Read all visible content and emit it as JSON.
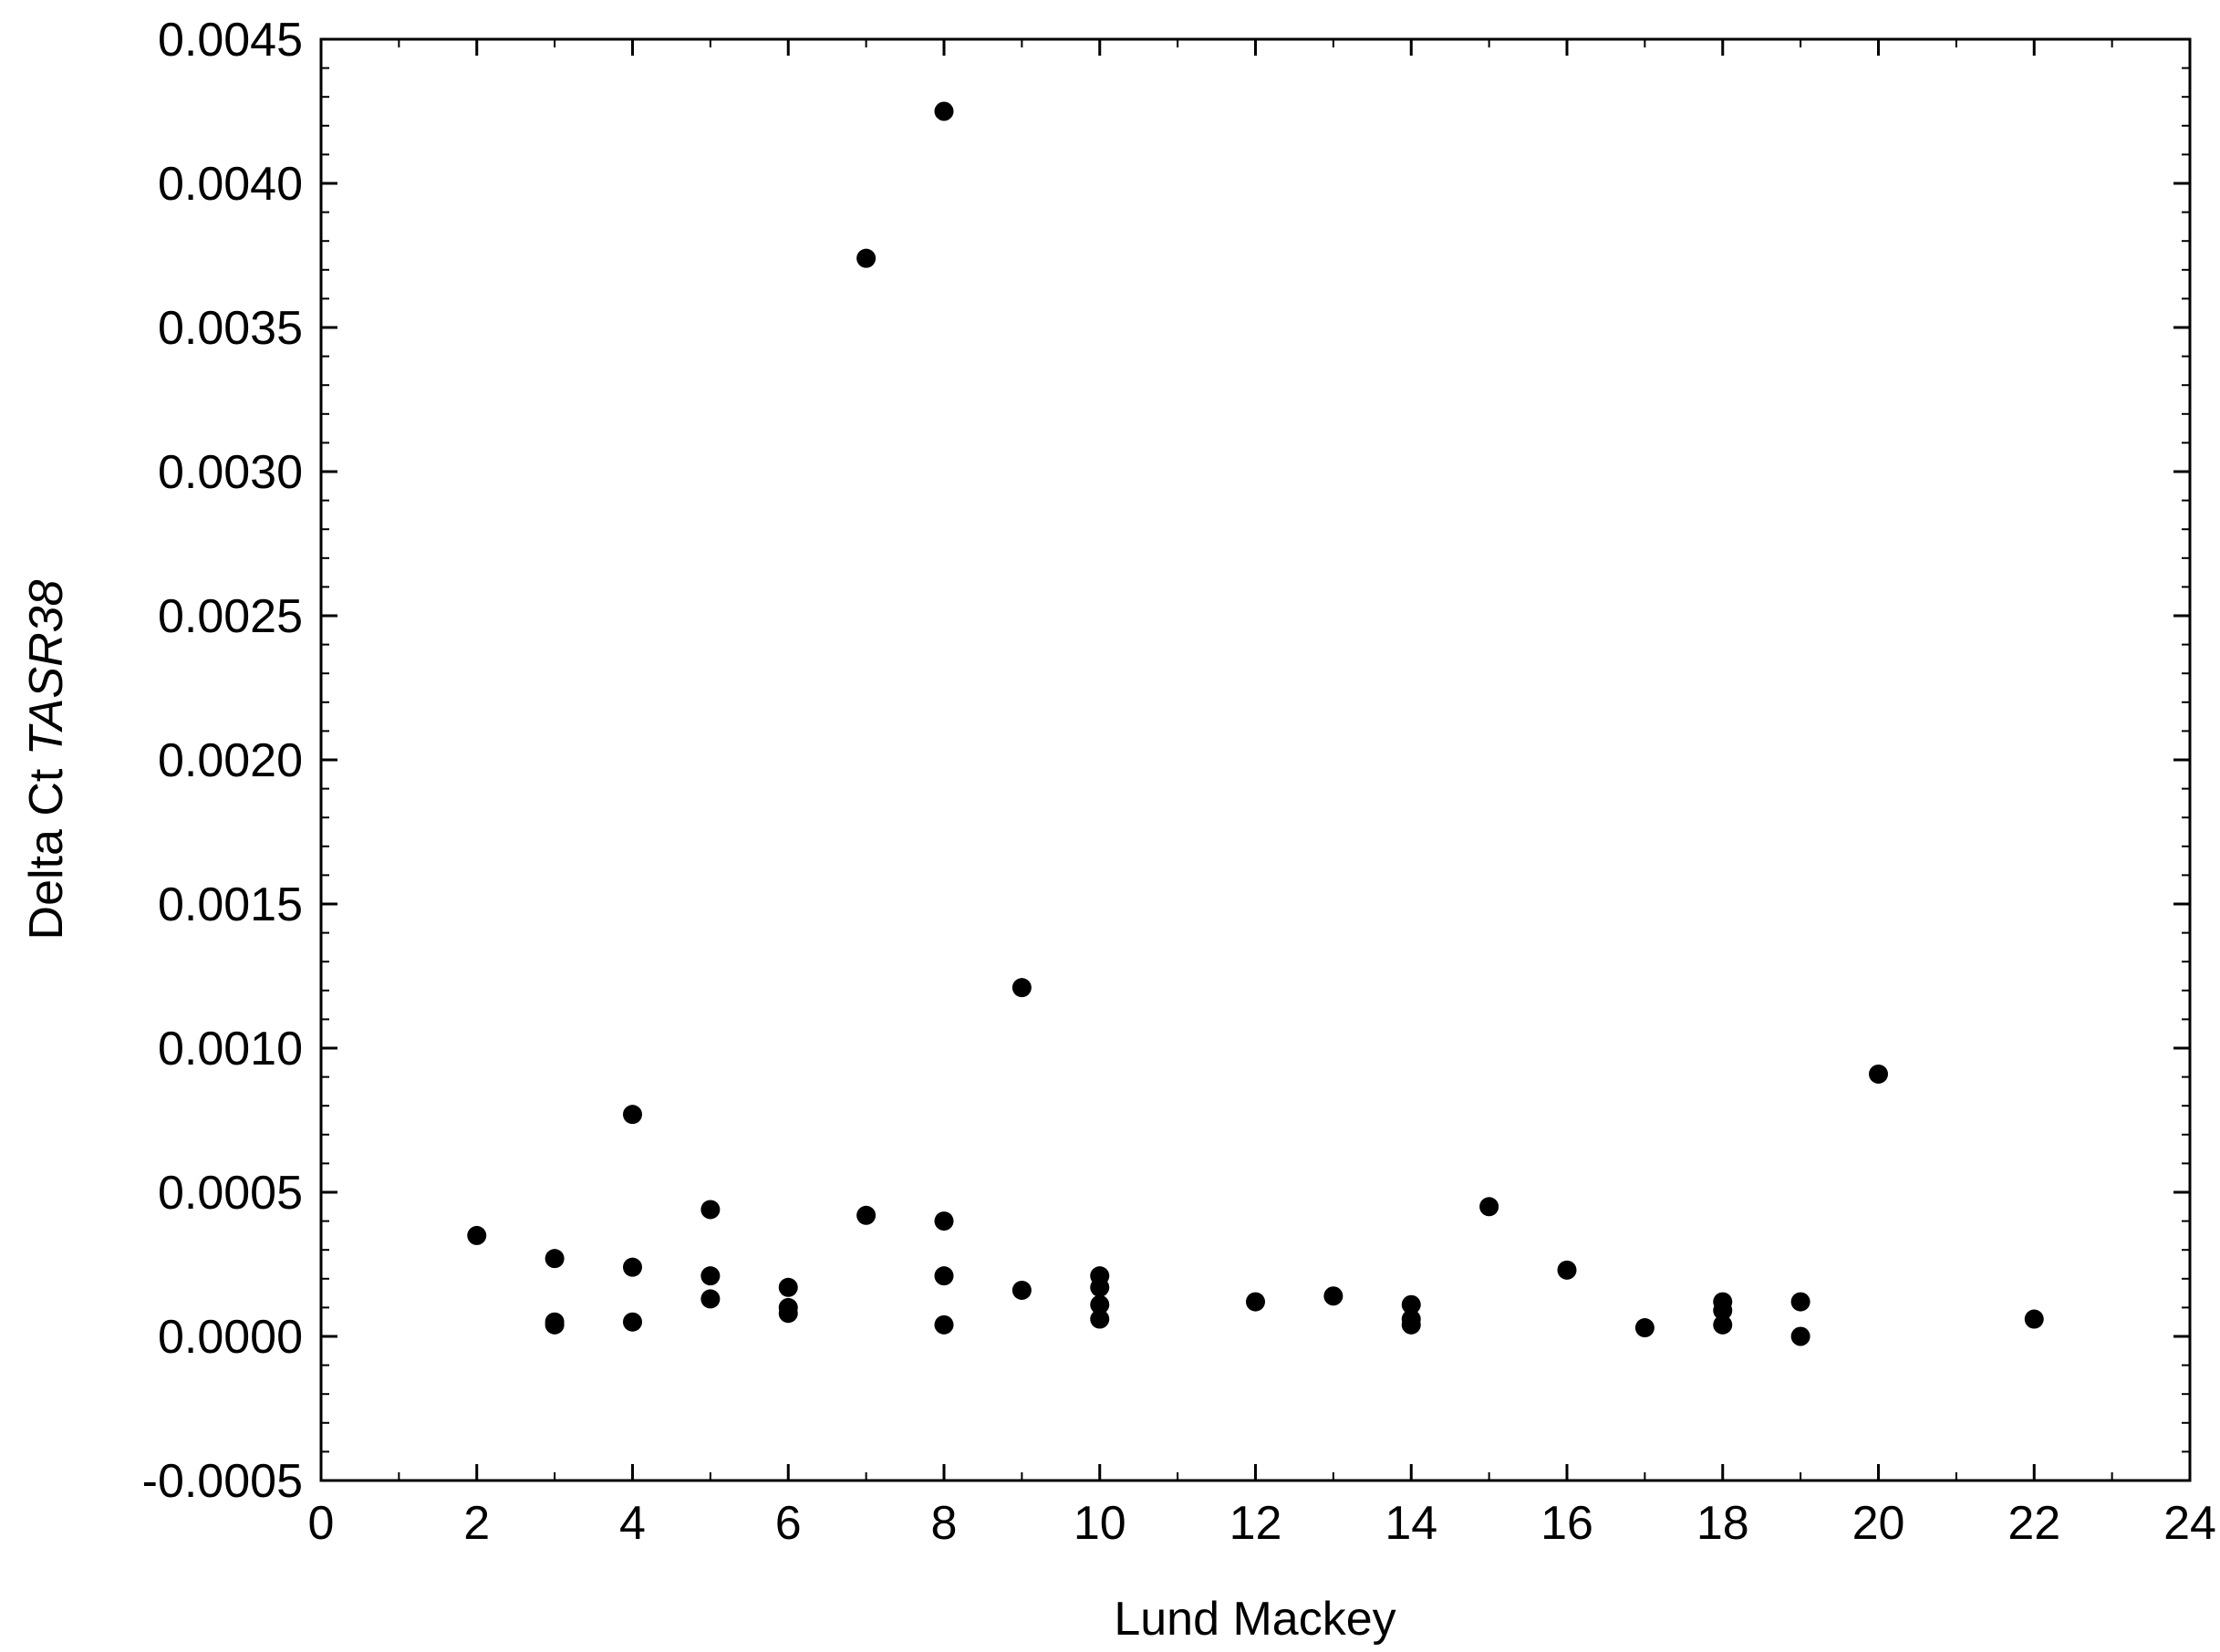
{
  "chart_data": {
    "type": "scatter",
    "title": "",
    "xlabel": "Lund Mackey",
    "ylabel_prefix": "Delta Ct ",
    "ylabel_gene": "TASR38",
    "xlim": [
      0,
      24
    ],
    "ylim": [
      -0.0005,
      0.0045
    ],
    "x_ticks": [
      0,
      2,
      4,
      6,
      8,
      10,
      12,
      14,
      16,
      18,
      20,
      22,
      24
    ],
    "x_tick_labels": [
      "0",
      "2",
      "4",
      "6",
      "8",
      "10",
      "12",
      "14",
      "16",
      "18",
      "20",
      "22",
      "24"
    ],
    "y_ticks": [
      -0.0005,
      0.0,
      0.0005,
      0.001,
      0.0015,
      0.002,
      0.0025,
      0.003,
      0.0035,
      0.004,
      0.0045
    ],
    "y_tick_labels": [
      "-0.0005",
      "0.0000",
      "0.0005",
      "0.0010",
      "0.0015",
      "0.0020",
      "0.0025",
      "0.0030",
      "0.0035",
      "0.0040",
      "0.0045"
    ],
    "grid": false,
    "marker_color": "#000000",
    "points": [
      {
        "x": 2,
        "y": 0.00035
      },
      {
        "x": 3,
        "y": 0.00027
      },
      {
        "x": 3,
        "y": 5e-05
      },
      {
        "x": 3,
        "y": 4e-05
      },
      {
        "x": 4,
        "y": 0.00077
      },
      {
        "x": 4,
        "y": 0.00024
      },
      {
        "x": 4,
        "y": 5e-05
      },
      {
        "x": 5,
        "y": 0.00044
      },
      {
        "x": 5,
        "y": 0.00021
      },
      {
        "x": 5,
        "y": 0.00013
      },
      {
        "x": 6,
        "y": 0.00017
      },
      {
        "x": 6,
        "y": 0.0001
      },
      {
        "x": 6,
        "y": 8e-05
      },
      {
        "x": 7,
        "y": 0.00374
      },
      {
        "x": 7,
        "y": 0.00042
      },
      {
        "x": 8,
        "y": 0.00425
      },
      {
        "x": 8,
        "y": 0.0004
      },
      {
        "x": 8,
        "y": 0.00021
      },
      {
        "x": 8,
        "y": 4e-05
      },
      {
        "x": 9,
        "y": 0.00121
      },
      {
        "x": 9,
        "y": 0.00016
      },
      {
        "x": 10,
        "y": 0.00021
      },
      {
        "x": 10,
        "y": 0.00017
      },
      {
        "x": 10,
        "y": 0.00011
      },
      {
        "x": 10,
        "y": 6e-05
      },
      {
        "x": 12,
        "y": 0.00012
      },
      {
        "x": 13,
        "y": 0.00014
      },
      {
        "x": 14,
        "y": 0.00011
      },
      {
        "x": 14,
        "y": 6e-05
      },
      {
        "x": 14,
        "y": 4e-05
      },
      {
        "x": 15,
        "y": 0.00045
      },
      {
        "x": 16,
        "y": 0.00023
      },
      {
        "x": 17,
        "y": 3e-05
      },
      {
        "x": 18,
        "y": 0.00012
      },
      {
        "x": 18,
        "y": 9e-05
      },
      {
        "x": 18,
        "y": 4e-05
      },
      {
        "x": 19,
        "y": 0.00012
      },
      {
        "x": 19,
        "y": 0.0
      },
      {
        "x": 20,
        "y": 0.00091
      },
      {
        "x": 22,
        "y": 6e-05
      }
    ]
  }
}
